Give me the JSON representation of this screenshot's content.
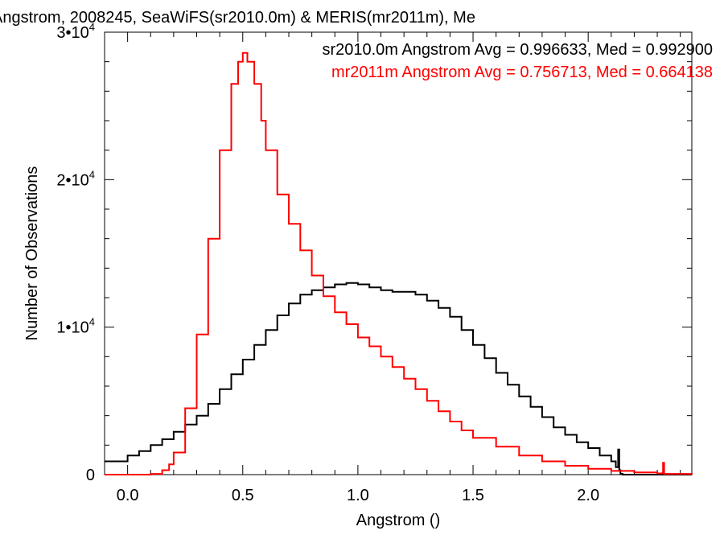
{
  "chart_data": {
    "type": "line",
    "title": "Angstrom, 2008245, SeaWiFS(sr2010.0m) & MERIS(mr2011m), Me",
    "xlabel": "Angstrom ()",
    "ylabel": "Number of Observations",
    "xlim": [
      -0.1,
      2.45
    ],
    "ylim": [
      0,
      30000
    ],
    "grid": false,
    "step": true,
    "x_ticks": [
      {
        "value": 0.0,
        "label": "0.0"
      },
      {
        "value": 0.5,
        "label": "0.5"
      },
      {
        "value": 1.0,
        "label": "1.0"
      },
      {
        "value": 1.5,
        "label": "1.5"
      },
      {
        "value": 2.0,
        "label": "2.0"
      }
    ],
    "y_ticks": [
      {
        "value": 0,
        "mant": "0",
        "exp": ""
      },
      {
        "value": 10000,
        "mant": "1•10",
        "exp": "4"
      },
      {
        "value": 20000,
        "mant": "2•10",
        "exp": "4"
      },
      {
        "value": 30000,
        "mant": "3•10",
        "exp": "4"
      }
    ],
    "legend_position": "top-right",
    "series": [
      {
        "name": "sr2010.0m",
        "color": "#000000",
        "stat_text": "sr2010.0m Angstrom Avg = 0.996633, Med = 0.992900",
        "x": [
          -0.1,
          0.0,
          0.05,
          0.1,
          0.15,
          0.2,
          0.25,
          0.3,
          0.35,
          0.4,
          0.45,
          0.5,
          0.55,
          0.6,
          0.65,
          0.7,
          0.75,
          0.8,
          0.85,
          0.9,
          0.95,
          1.0,
          1.05,
          1.1,
          1.15,
          1.2,
          1.25,
          1.3,
          1.35,
          1.4,
          1.45,
          1.5,
          1.55,
          1.6,
          1.65,
          1.7,
          1.75,
          1.8,
          1.85,
          1.9,
          1.95,
          2.0,
          2.05,
          2.1,
          2.12,
          2.13,
          2.135,
          2.14,
          2.15,
          2.2,
          2.3,
          2.45
        ],
        "y": [
          900,
          1300,
          1600,
          2000,
          2400,
          2900,
          3400,
          4000,
          4800,
          5800,
          6800,
          7800,
          8800,
          9800,
          10800,
          11600,
          12200,
          12500,
          12700,
          12900,
          13000,
          12900,
          12700,
          12500,
          12400,
          12400,
          12200,
          11800,
          11300,
          10700,
          9800,
          8800,
          7900,
          6900,
          6100,
          5300,
          4600,
          3900,
          3200,
          2700,
          2200,
          1800,
          1300,
          900,
          500,
          1700,
          300,
          50,
          0,
          0,
          0,
          0
        ]
      },
      {
        "name": "mr2011m",
        "color": "#ff0000",
        "stat_text": "mr2011m Angstrom Avg = 0.756713, Med = 0.664138",
        "x": [
          -0.1,
          0.0,
          0.1,
          0.15,
          0.18,
          0.2,
          0.25,
          0.3,
          0.35,
          0.4,
          0.45,
          0.48,
          0.5,
          0.52,
          0.55,
          0.58,
          0.6,
          0.65,
          0.7,
          0.75,
          0.8,
          0.85,
          0.9,
          0.95,
          1.0,
          1.05,
          1.1,
          1.15,
          1.2,
          1.25,
          1.3,
          1.35,
          1.4,
          1.45,
          1.5,
          1.6,
          1.7,
          1.8,
          1.9,
          2.0,
          2.1,
          2.2,
          2.3,
          2.32,
          2.325,
          2.33,
          2.45
        ],
        "y": [
          0,
          0,
          50,
          300,
          700,
          1500,
          4500,
          9500,
          16000,
          22000,
          26500,
          28000,
          28600,
          28000,
          26500,
          24000,
          22000,
          19000,
          17000,
          15200,
          13500,
          12100,
          11000,
          10200,
          9300,
          8700,
          8000,
          7300,
          6500,
          5800,
          5000,
          4300,
          3600,
          3000,
          2500,
          1900,
          1300,
          900,
          600,
          400,
          250,
          150,
          80,
          100,
          800,
          50,
          0
        ]
      }
    ]
  }
}
